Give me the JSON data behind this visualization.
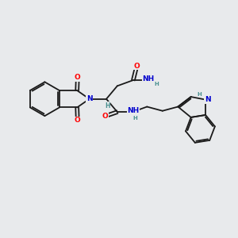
{
  "background_color": "#e8eaec",
  "bond_color": "#1a1a1a",
  "atom_colors": {
    "O": "#ff0000",
    "N": "#0000cd",
    "H": "#4a9090",
    "C": "#1a1a1a"
  },
  "figsize": [
    3.0,
    3.0
  ],
  "dpi": 100
}
